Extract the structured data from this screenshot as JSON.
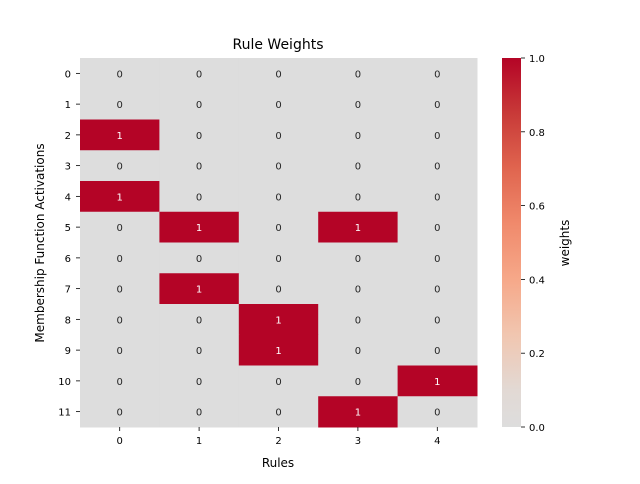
{
  "chart_data": {
    "type": "heatmap",
    "title": "Rule Weights",
    "xlabel": "Rules",
    "ylabel": "Membership Function Activations",
    "x_categories": [
      "0",
      "1",
      "2",
      "3",
      "4"
    ],
    "y_categories": [
      "0",
      "1",
      "2",
      "3",
      "4",
      "5",
      "6",
      "7",
      "8",
      "9",
      "10",
      "11"
    ],
    "values": [
      [
        0,
        0,
        0,
        0,
        0
      ],
      [
        0,
        0,
        0,
        0,
        0
      ],
      [
        1,
        0,
        0,
        0,
        0
      ],
      [
        0,
        0,
        0,
        0,
        0
      ],
      [
        1,
        0,
        0,
        0,
        0
      ],
      [
        0,
        1,
        0,
        1,
        0
      ],
      [
        0,
        0,
        0,
        0,
        0
      ],
      [
        0,
        1,
        0,
        0,
        0
      ],
      [
        0,
        0,
        1,
        0,
        0
      ],
      [
        0,
        0,
        1,
        0,
        0
      ],
      [
        0,
        0,
        0,
        0,
        1
      ],
      [
        0,
        0,
        0,
        1,
        0
      ]
    ],
    "annotated": true,
    "colormap": "coolwarm",
    "color_low": "#dddddd",
    "color_high": "#b40426",
    "colorbar": {
      "label": "weights",
      "range": [
        0.0,
        1.0
      ],
      "ticks": [
        "0.0",
        "0.2",
        "0.4",
        "0.6",
        "0.8",
        "1.0"
      ]
    }
  }
}
